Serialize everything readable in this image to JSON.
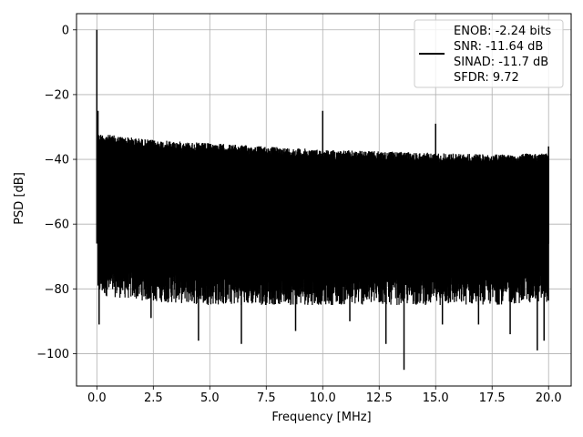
{
  "chart_data": {
    "type": "line",
    "xlabel": "Frequency [MHz]",
    "ylabel": "PSD [dB]",
    "xlim": [
      -0.9,
      21.0
    ],
    "ylim": [
      -110.0,
      5.0
    ],
    "xticks": [
      0.0,
      2.5,
      5.0,
      7.5,
      10.0,
      12.5,
      15.0,
      17.5,
      20.0
    ],
    "xtick_labels": [
      "0.0",
      "2.5",
      "5.0",
      "7.5",
      "10.0",
      "12.5",
      "15.0",
      "17.5",
      "20.0"
    ],
    "yticks": [
      0,
      -20,
      -40,
      -60,
      -80,
      -100
    ],
    "ytick_labels": [
      "0",
      "−20",
      "−40",
      "−60",
      "−80",
      "−100"
    ],
    "grid": true,
    "legend_position": "upper-right",
    "series": [
      {
        "name": "ENOB: -2.24 bits\nSNR: -11.64 dB\nSINAD: -11.7 dB\nSFDR: 9.72",
        "color": "#000000",
        "noise_floor_upper": [
          [
            0.05,
            -32
          ],
          [
            2.5,
            -34
          ],
          [
            5.0,
            -35
          ],
          [
            7.5,
            -36
          ],
          [
            10.0,
            -37
          ],
          [
            12.5,
            -37.5
          ],
          [
            15.0,
            -38
          ],
          [
            17.5,
            -38.5
          ],
          [
            20.0,
            -38
          ]
        ],
        "noise_floor_lower": [
          [
            0.05,
            -78
          ],
          [
            2.5,
            -80
          ],
          [
            5.0,
            -81
          ],
          [
            7.5,
            -81
          ],
          [
            10.0,
            -81
          ],
          [
            12.5,
            -81
          ],
          [
            15.0,
            -81
          ],
          [
            17.5,
            -81
          ],
          [
            20.0,
            -80
          ]
        ],
        "spurs": [
          {
            "x": 0.0,
            "y": 0.0
          },
          {
            "x": 0.05,
            "y": -25.0
          },
          {
            "x": 10.0,
            "y": -25.0
          },
          {
            "x": 15.0,
            "y": -29.0
          },
          {
            "x": 20.0,
            "y": -36.0
          }
        ],
        "dips": [
          {
            "x": 0.1,
            "y": -91.0
          },
          {
            "x": 2.4,
            "y": -89.0
          },
          {
            "x": 4.5,
            "y": -96.0
          },
          {
            "x": 6.4,
            "y": -97.0
          },
          {
            "x": 8.8,
            "y": -93.0
          },
          {
            "x": 11.2,
            "y": -90.0
          },
          {
            "x": 12.8,
            "y": -97.0
          },
          {
            "x": 13.6,
            "y": -105.0
          },
          {
            "x": 15.3,
            "y": -91.0
          },
          {
            "x": 16.9,
            "y": -91.0
          },
          {
            "x": 18.3,
            "y": -94.0
          },
          {
            "x": 19.5,
            "y": -99.0
          },
          {
            "x": 19.8,
            "y": -96.0
          }
        ]
      }
    ]
  },
  "legend": {
    "line1": "ENOB: -2.24 bits",
    "line2": "SNR: -11.64 dB",
    "line3": "SINAD: -11.7 dB",
    "line4": "SFDR: 9.72"
  }
}
